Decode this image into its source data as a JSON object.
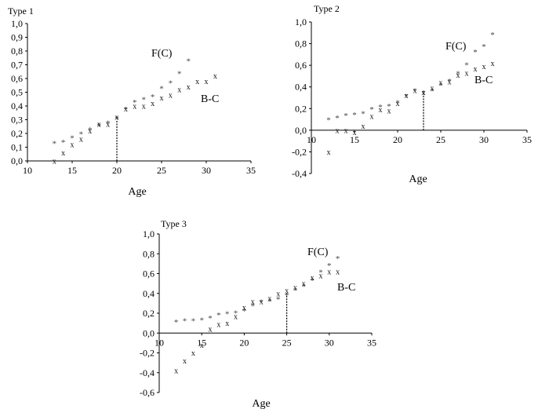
{
  "chart_data": [
    {
      "type": "scatter",
      "title": "Type 1",
      "xlabel": "Age",
      "ylabel": "",
      "xlim": [
        10,
        35
      ],
      "ylim": [
        0,
        1.0
      ],
      "xticks": [
        "10",
        "15",
        "20",
        "25",
        "30",
        "35"
      ],
      "yticks": [
        "0,0",
        "0,1",
        "0,2",
        "0,3",
        "0,4",
        "0,5",
        "0,6",
        "0,7",
        "0,8",
        "0,9",
        "1,0"
      ],
      "threshold_age": 20,
      "threshold_value": 0.3,
      "annotations": [
        "F(C)",
        "B-C"
      ],
      "series": [
        {
          "name": "F(C)",
          "marker": "*",
          "x": [
            13,
            14,
            15,
            16,
            17,
            18,
            19,
            20,
            21,
            22,
            23,
            24,
            25,
            26,
            27,
            28
          ],
          "y": [
            0.14,
            0.15,
            0.18,
            0.21,
            0.24,
            0.27,
            0.29,
            0.32,
            0.39,
            0.44,
            0.46,
            0.48,
            0.54,
            0.58,
            0.65,
            0.74
          ]
        },
        {
          "name": "B-C",
          "marker": "x",
          "x": [
            13,
            14,
            15,
            16,
            17,
            18,
            19,
            20,
            21,
            22,
            23,
            24,
            25,
            26,
            27,
            28,
            29,
            30,
            31
          ],
          "y": [
            0.0,
            0.06,
            0.12,
            0.16,
            0.22,
            0.27,
            0.27,
            0.32,
            0.38,
            0.4,
            0.4,
            0.42,
            0.46,
            0.48,
            0.52,
            0.54,
            0.58,
            0.58,
            0.62
          ]
        }
      ]
    },
    {
      "type": "scatter",
      "title": "Type 2",
      "xlabel": "Age",
      "ylabel": "",
      "xlim": [
        10,
        35
      ],
      "ylim": [
        -0.4,
        1.0
      ],
      "xticks": [
        "10",
        "15",
        "20",
        "25",
        "30",
        "35"
      ],
      "yticks": [
        "-0,4",
        "-0,2",
        "0,0",
        "0,2",
        "0,4",
        "0,6",
        "0,8",
        "1,0"
      ],
      "threshold_age": 23,
      "threshold_value": 0.36,
      "annotations": [
        "F(C)",
        "B-C"
      ],
      "series": [
        {
          "name": "F(C)",
          "marker": "*",
          "x": [
            12,
            13,
            14,
            15,
            16,
            17,
            18,
            19,
            20,
            21,
            22,
            23,
            24,
            25,
            26,
            27,
            28,
            29,
            30,
            31
          ],
          "y": [
            0.11,
            0.13,
            0.15,
            0.16,
            0.17,
            0.21,
            0.23,
            0.24,
            0.27,
            0.33,
            0.38,
            0.36,
            0.38,
            0.43,
            0.47,
            0.54,
            0.62,
            0.74,
            0.79,
            0.9
          ]
        },
        {
          "name": "B-C",
          "marker": "x",
          "x": [
            12,
            13,
            14,
            15,
            16,
            17,
            18,
            19,
            20,
            21,
            22,
            23,
            24,
            25,
            26,
            27,
            28,
            29,
            30,
            31
          ],
          "y": [
            -0.2,
            0.0,
            0.0,
            -0.02,
            0.04,
            0.13,
            0.19,
            0.18,
            0.25,
            0.32,
            0.37,
            0.35,
            0.39,
            0.44,
            0.45,
            0.51,
            0.53,
            0.57,
            0.59,
            0.62
          ]
        }
      ]
    },
    {
      "type": "scatter",
      "title": "Type 3",
      "xlabel": "Age",
      "ylabel": "",
      "xlim": [
        10,
        35
      ],
      "ylim": [
        -0.6,
        1.0
      ],
      "xticks": [
        "10",
        "15",
        "20",
        "25",
        "30",
        "35"
      ],
      "yticks": [
        "-0,6",
        "-0,4",
        "-0,2",
        "0,0",
        "0,2",
        "0,4",
        "0,6",
        "0,8",
        "1,0"
      ],
      "threshold_age": 25,
      "threshold_value": 0.4,
      "annotations": [
        "F(C)",
        "B-C"
      ],
      "series": [
        {
          "name": "F(C)",
          "marker": "*",
          "x": [
            12,
            13,
            14,
            15,
            16,
            17,
            18,
            19,
            20,
            21,
            22,
            23,
            24,
            25,
            26,
            27,
            28,
            29,
            30,
            31
          ],
          "y": [
            0.13,
            0.14,
            0.14,
            0.15,
            0.17,
            0.2,
            0.21,
            0.22,
            0.24,
            0.29,
            0.33,
            0.34,
            0.36,
            0.4,
            0.45,
            0.49,
            0.55,
            0.63,
            0.7,
            0.77
          ]
        },
        {
          "name": "B-C",
          "marker": "x",
          "x": [
            12,
            13,
            14,
            15,
            16,
            17,
            18,
            19,
            20,
            21,
            22,
            23,
            24,
            25,
            26,
            27,
            28,
            29,
            30,
            31
          ],
          "y": [
            -0.38,
            -0.28,
            -0.2,
            -0.12,
            0.04,
            0.09,
            0.1,
            0.17,
            0.26,
            0.32,
            0.32,
            0.35,
            0.4,
            0.43,
            0.46,
            0.5,
            0.56,
            0.58,
            0.62,
            0.62
          ]
        }
      ]
    }
  ]
}
